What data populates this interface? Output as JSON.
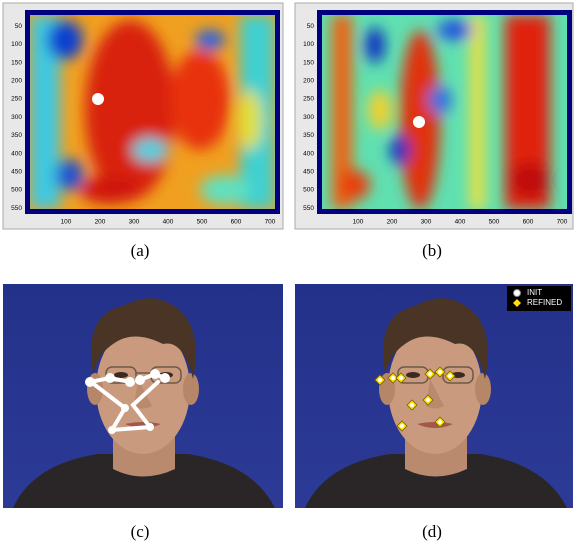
{
  "panels": [
    {
      "caption": "(a)",
      "xticks": [
        100,
        200,
        300,
        400,
        500,
        600,
        700
      ],
      "yticks": [
        50,
        100,
        150,
        200,
        250,
        300,
        350,
        400,
        450,
        500,
        550
      ]
    },
    {
      "caption": "(b)",
      "xticks": [
        100,
        200,
        300,
        400,
        500,
        600,
        700
      ],
      "yticks": [
        50,
        100,
        150,
        200,
        250,
        300,
        350,
        400,
        450,
        500,
        550
      ]
    },
    {
      "caption": "(c)"
    },
    {
      "caption": "(d)",
      "legend": [
        "INIT",
        "REFINED"
      ]
    }
  ]
}
